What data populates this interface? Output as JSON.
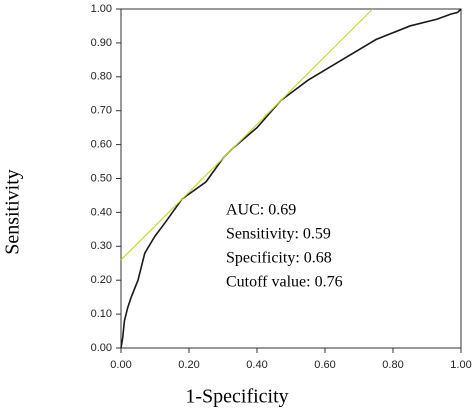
{
  "chart_data": {
    "type": "line",
    "x_label": "1-Specificity",
    "y_label": "Sensitivity",
    "xlim": [
      0,
      1
    ],
    "ylim": [
      0,
      1
    ],
    "xticks": [
      {
        "value": 0,
        "label": "0.00"
      },
      {
        "value": 0.2,
        "label": "0.20"
      },
      {
        "value": 0.4,
        "label": "0.40"
      },
      {
        "value": 0.6,
        "label": "0.60"
      },
      {
        "value": 0.8,
        "label": "0.80"
      },
      {
        "value": 1,
        "label": "1.00"
      }
    ],
    "yticks": [
      {
        "value": 0,
        "label": "0.00"
      },
      {
        "value": 0.1,
        "label": "0.10"
      },
      {
        "value": 0.2,
        "label": "0.20"
      },
      {
        "value": 0.3,
        "label": "0.30"
      },
      {
        "value": 0.4,
        "label": "0.40"
      },
      {
        "value": 0.5,
        "label": "0.50"
      },
      {
        "value": 0.6,
        "label": "0.60"
      },
      {
        "value": 0.7,
        "label": "0.70"
      },
      {
        "value": 0.8,
        "label": "0.80"
      },
      {
        "value": 0.9,
        "label": "0.90"
      },
      {
        "value": 1,
        "label": "1.00"
      }
    ],
    "series": [
      {
        "color": "#1a1a1a",
        "x": [
          0,
          0.005,
          0.01,
          0.02,
          0.03,
          0.05,
          0.07,
          0.1,
          0.13,
          0.18,
          0.25,
          0.3,
          0.33,
          0.4,
          0.47,
          0.55,
          0.65,
          0.75,
          0.85,
          0.93,
          0.97,
          0.99,
          1.0
        ],
        "values": [
          0,
          0.03,
          0.08,
          0.12,
          0.15,
          0.2,
          0.28,
          0.33,
          0.37,
          0.44,
          0.49,
          0.56,
          0.59,
          0.65,
          0.73,
          0.79,
          0.85,
          0.91,
          0.95,
          0.97,
          0.985,
          0.99,
          1.0
        ]
      },
      {
        "color": "#c8d838",
        "x": [
          0,
          0.74
        ],
        "values": [
          0.26,
          1.0
        ]
      }
    ],
    "annotations": [
      "AUC: 0.69",
      "Sensitivity: 0.59",
      "Specificity: 0.68",
      "Cutoff value: 0.76"
    ]
  }
}
